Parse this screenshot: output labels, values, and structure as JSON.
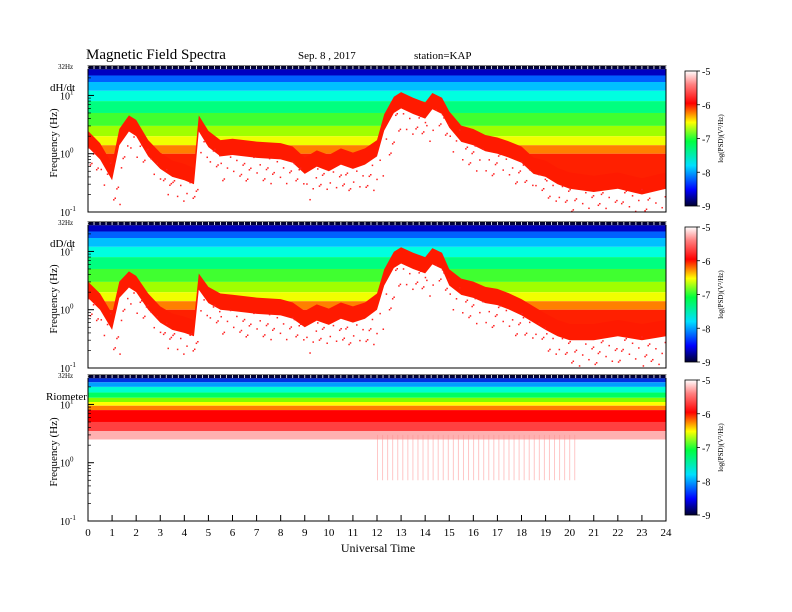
{
  "header": {
    "title": "Magnetic  Field  Spectra",
    "date": "Sep. 8 , 2017",
    "station": "station=KAP"
  },
  "chart_data": [
    {
      "type": "heatmap",
      "panel_label": "dH/dt",
      "ylabel": "Frequency  (Hz)",
      "y_top_label": "32Hz",
      "y_ticks": [
        {
          "exp": "1",
          "v": 10
        },
        {
          "exp": "0",
          "v": 1
        },
        {
          "exp": "-1",
          "v": 0.1
        }
      ],
      "ylim": [
        0.1,
        32
      ],
      "log_y": true,
      "x_range": [
        0,
        24
      ],
      "colorbar": {
        "label": "log(PSD)(V²/Hz)",
        "ticks": [
          "-5",
          "-6",
          "-7",
          "-8",
          "-9"
        ],
        "range": [
          -9,
          -5
        ]
      },
      "background_floor_hz": [
        [
          0,
          1.3
        ],
        [
          0.5,
          0.8
        ],
        [
          1.0,
          0.35
        ],
        [
          1.3,
          1.4
        ],
        [
          1.7,
          2.4
        ],
        [
          2.0,
          2.0
        ],
        [
          2.5,
          0.9
        ],
        [
          3.0,
          0.55
        ],
        [
          3.5,
          0.4
        ],
        [
          4.0,
          0.35
        ],
        [
          4.4,
          0.3
        ],
        [
          4.6,
          2.4
        ],
        [
          5.0,
          1.3
        ],
        [
          5.5,
          0.9
        ],
        [
          6.0,
          0.95
        ],
        [
          7.0,
          0.85
        ],
        [
          8.0,
          0.8
        ],
        [
          8.5,
          0.7
        ],
        [
          9.0,
          0.45
        ],
        [
          9.5,
          0.6
        ],
        [
          10.0,
          0.5
        ],
        [
          10.5,
          0.65
        ],
        [
          11.0,
          0.55
        ],
        [
          11.5,
          0.65
        ],
        [
          12.0,
          0.9
        ],
        [
          12.3,
          2.5
        ],
        [
          12.7,
          5.0
        ],
        [
          13.0,
          6.0
        ],
        [
          13.5,
          4.8
        ],
        [
          14.0,
          4.0
        ],
        [
          14.3,
          5.8
        ],
        [
          14.7,
          4.8
        ],
        [
          15.0,
          2.8
        ],
        [
          15.5,
          1.6
        ],
        [
          16.0,
          1.4
        ],
        [
          16.5,
          1.1
        ],
        [
          17.0,
          1.0
        ],
        [
          17.5,
          0.85
        ],
        [
          18.0,
          0.7
        ],
        [
          18.5,
          0.45
        ],
        [
          19.0,
          0.4
        ],
        [
          19.5,
          0.3
        ],
        [
          20.0,
          0.25
        ],
        [
          21.0,
          0.22
        ],
        [
          22.0,
          0.25
        ],
        [
          23.0,
          0.2
        ],
        [
          24.0,
          0.25
        ]
      ]
    },
    {
      "type": "heatmap",
      "panel_label": "dD/dt",
      "ylabel": "Frequency  (Hz)",
      "y_top_label": "32Hz",
      "y_ticks": [
        {
          "exp": "1",
          "v": 10
        },
        {
          "exp": "0",
          "v": 1
        },
        {
          "exp": "-1",
          "v": 0.1
        }
      ],
      "ylim": [
        0.1,
        32
      ],
      "log_y": true,
      "x_range": [
        0,
        24
      ],
      "colorbar": {
        "label": "log(PSD)(V²/Hz)",
        "ticks": [
          "-5",
          "-6",
          "-7",
          "-8",
          "-9"
        ],
        "range": [
          -9,
          -5
        ]
      },
      "background_floor_hz": [
        [
          0,
          1.6
        ],
        [
          0.5,
          1.0
        ],
        [
          1.0,
          0.45
        ],
        [
          1.3,
          1.6
        ],
        [
          1.7,
          2.4
        ],
        [
          2.0,
          2.0
        ],
        [
          2.5,
          1.0
        ],
        [
          3.0,
          0.6
        ],
        [
          3.5,
          0.45
        ],
        [
          4.0,
          0.4
        ],
        [
          4.4,
          0.35
        ],
        [
          4.6,
          2.2
        ],
        [
          5.0,
          1.3
        ],
        [
          5.5,
          1.0
        ],
        [
          6.0,
          0.95
        ],
        [
          7.0,
          0.85
        ],
        [
          8.0,
          0.8
        ],
        [
          8.5,
          0.7
        ],
        [
          9.0,
          0.5
        ],
        [
          9.5,
          0.65
        ],
        [
          10.0,
          0.55
        ],
        [
          10.5,
          0.7
        ],
        [
          11.0,
          0.6
        ],
        [
          11.5,
          0.7
        ],
        [
          12.0,
          1.0
        ],
        [
          12.3,
          2.6
        ],
        [
          12.7,
          5.2
        ],
        [
          13.0,
          6.2
        ],
        [
          13.5,
          5.0
        ],
        [
          14.0,
          4.2
        ],
        [
          14.3,
          6.0
        ],
        [
          14.7,
          5.0
        ],
        [
          15.0,
          2.6
        ],
        [
          15.5,
          1.8
        ],
        [
          16.0,
          1.6
        ],
        [
          16.5,
          1.3
        ],
        [
          17.0,
          1.2
        ],
        [
          17.5,
          1.0
        ],
        [
          18.0,
          0.8
        ],
        [
          18.5,
          0.6
        ],
        [
          19.0,
          0.45
        ],
        [
          19.5,
          0.35
        ],
        [
          20.0,
          0.3
        ],
        [
          21.0,
          0.3
        ],
        [
          22.0,
          0.35
        ],
        [
          23.0,
          0.3
        ],
        [
          24.0,
          0.35
        ]
      ]
    },
    {
      "type": "heatmap",
      "panel_label": "Riometer",
      "ylabel": "Frequency  (Hz)",
      "y_top_label": "32Hz",
      "y_ticks": [
        {
          "exp": "1",
          "v": 10
        },
        {
          "exp": "0",
          "v": 1
        },
        {
          "exp": "-1",
          "v": 0.1
        }
      ],
      "ylim": [
        0.1,
        32
      ],
      "log_y": true,
      "x_range": [
        0,
        24
      ],
      "colorbar": {
        "label": "log(PSD)(V²/Hz)",
        "ticks": [
          "-5",
          "-6",
          "-7",
          "-8",
          "-9"
        ],
        "range": [
          -9,
          -5
        ]
      },
      "background_floor_hz": [
        [
          0,
          5
        ],
        [
          24,
          5
        ]
      ]
    }
  ],
  "x_axis": {
    "label": "Universal  Time",
    "ticks": [
      "0",
      "1",
      "2",
      "3",
      "4",
      "5",
      "6",
      "7",
      "8",
      "9",
      "10",
      "11",
      "12",
      "13",
      "14",
      "15",
      "16",
      "17",
      "18",
      "19",
      "20",
      "21",
      "22",
      "23",
      "24"
    ]
  }
}
